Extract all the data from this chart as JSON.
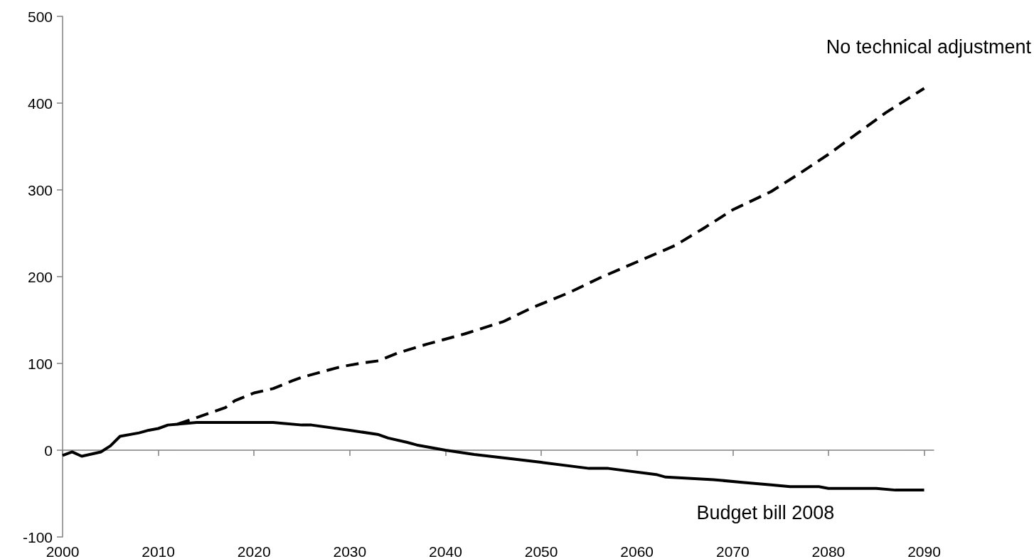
{
  "chart_data": {
    "type": "line",
    "marker": "none",
    "xlim": [
      2000,
      2091
    ],
    "xticks": [
      2000,
      2010,
      2020,
      2030,
      2040,
      2050,
      2060,
      2070,
      2080,
      2090
    ],
    "ylim": [
      -100,
      500
    ],
    "yticks": [
      -100,
      0,
      100,
      200,
      300,
      400,
      500
    ],
    "series": [
      {
        "name": "No technical adjustment",
        "color": "#000000",
        "line_style": "dashed",
        "x": [
          2012,
          2017,
          2018,
          2020,
          2022,
          2024,
          2025,
          2027,
          2029,
          2031,
          2033,
          2035,
          2038,
          2042,
          2046,
          2049,
          2053,
          2056,
          2060,
          2064,
          2067,
          2070,
          2074,
          2077,
          2080,
          2083,
          2086,
          2090
        ],
        "values": [
          30,
          49,
          57,
          66,
          71,
          80,
          84,
          90,
          96,
          100,
          103,
          112,
          122,
          134,
          148,
          164,
          182,
          198,
          217,
          236,
          256,
          277,
          298,
          319,
          341,
          365,
          389,
          417
        ]
      },
      {
        "name": "Budget bill 2008",
        "color": "#000000",
        "line_style": "solid",
        "x": [
          2000,
          2001,
          2002,
          2004,
          2005,
          2006,
          2008,
          2009,
          2010,
          2011,
          2012,
          2014,
          2022,
          2023,
          2025,
          2026,
          2030,
          2033,
          2034,
          2036,
          2037,
          2040,
          2043,
          2047,
          2050,
          2055,
          2057,
          2062,
          2063,
          2068,
          2071,
          2074,
          2076,
          2079,
          2080,
          2085,
          2087,
          2090
        ],
        "values": [
          -6,
          -2,
          -7,
          -2,
          5,
          16,
          20,
          23,
          25,
          29,
          30,
          32,
          32,
          31,
          29,
          29,
          23,
          18,
          14,
          9,
          6,
          0,
          -5,
          -10,
          -14,
          -21,
          -21,
          -28,
          -31,
          -34,
          -37,
          -40,
          -42,
          -42,
          -44,
          -44,
          -46,
          -46
        ]
      }
    ]
  }
}
